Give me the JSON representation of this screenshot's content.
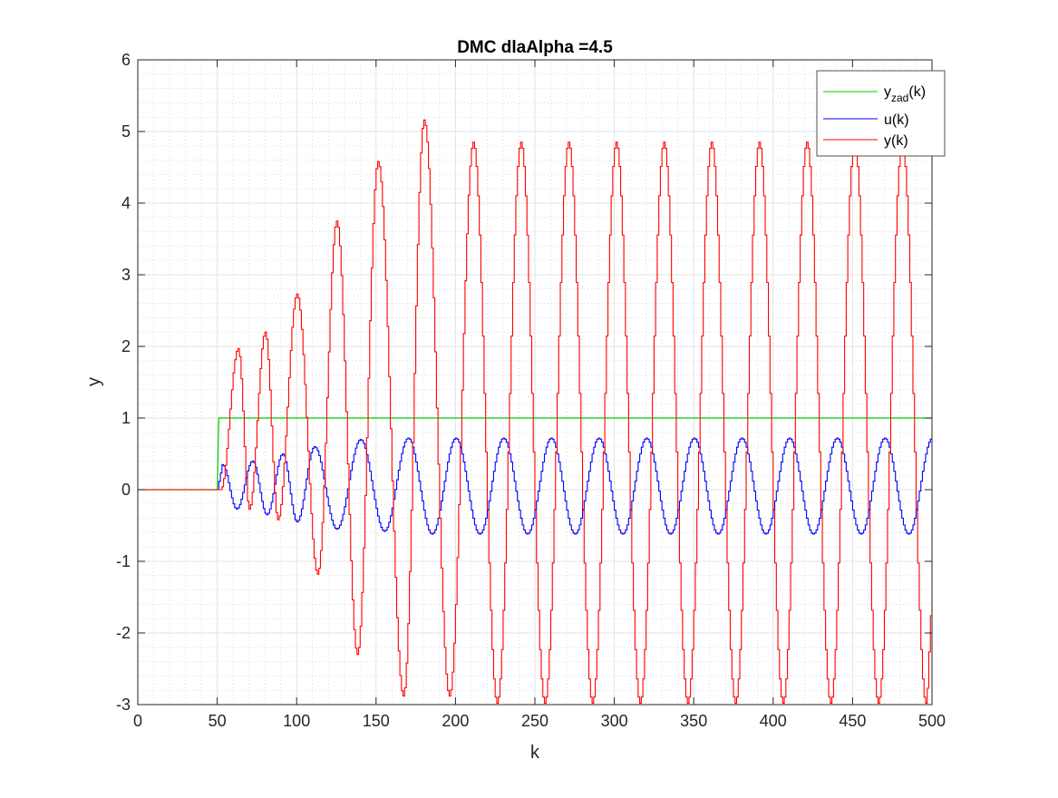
{
  "chart_data": {
    "type": "line",
    "title": "DMC dlaAlpha =4.5",
    "xlabel": "k",
    "ylabel": "y",
    "xlim": [
      0,
      500
    ],
    "ylim": [
      -3,
      6
    ],
    "xticks": [
      0,
      50,
      100,
      150,
      200,
      250,
      300,
      350,
      400,
      450,
      500
    ],
    "yticks": [
      -3,
      -2,
      -1,
      0,
      1,
      2,
      3,
      4,
      5,
      6
    ],
    "grid": true,
    "minor_grid": true,
    "legend_position": "top-right",
    "colors": {
      "yzad": "#00cc00",
      "u": "#0000ff",
      "y": "#ff0000",
      "axis": "#262626",
      "grid": "#e6e6e6"
    },
    "series": [
      {
        "name": "y_zad(k)",
        "legend_main": "y",
        "legend_sub": "zad",
        "legend_suffix": "(k)",
        "color": "#00cc00",
        "step_k": 50,
        "value_before": 0,
        "value_after": 1
      },
      {
        "name": "u(k)",
        "legend_main": "u(k)",
        "color": "#0000ff",
        "start_k": 50,
        "peaks": [
          [
            53,
            0.35
          ],
          [
            62,
            -0.27
          ],
          [
            72,
            0.4
          ],
          [
            81,
            -0.35
          ],
          [
            91,
            0.5
          ],
          [
            100,
            -0.45
          ],
          [
            111,
            0.6
          ],
          [
            125,
            -0.55
          ],
          [
            140,
            0.7
          ],
          [
            155,
            -0.58
          ],
          [
            170,
            0.72
          ],
          [
            185,
            -0.62
          ],
          [
            200,
            0.72
          ],
          [
            215,
            -0.62
          ],
          [
            230,
            0.72
          ],
          [
            245,
            -0.62
          ],
          [
            260,
            0.72
          ],
          [
            275,
            -0.62
          ],
          [
            290,
            0.72
          ],
          [
            305,
            -0.62
          ],
          [
            320,
            0.72
          ],
          [
            335,
            -0.62
          ],
          [
            350,
            0.72
          ],
          [
            365,
            -0.62
          ],
          [
            380,
            0.72
          ],
          [
            395,
            -0.62
          ],
          [
            410,
            0.72
          ],
          [
            425,
            -0.62
          ],
          [
            440,
            0.72
          ],
          [
            455,
            -0.62
          ],
          [
            470,
            0.72
          ],
          [
            485,
            -0.62
          ],
          [
            500,
            0.72
          ]
        ]
      },
      {
        "name": "y(k)",
        "legend_main": "y(k)",
        "color": "#ff0000",
        "start_k": 50,
        "peaks": [
          [
            52,
            0
          ],
          [
            63,
            1.97
          ],
          [
            70,
            -0.27
          ],
          [
            80,
            2.2
          ],
          [
            88,
            -0.42
          ],
          [
            100,
            2.73
          ],
          [
            113,
            -1.18
          ],
          [
            125,
            3.75
          ],
          [
            138,
            -2.3
          ],
          [
            151,
            4.58
          ],
          [
            167,
            -2.88
          ],
          [
            180,
            5.16
          ],
          [
            196,
            -2.88
          ],
          [
            211,
            4.85
          ],
          [
            226,
            -2.98
          ],
          [
            241,
            4.85
          ],
          [
            256,
            -2.98
          ],
          [
            271,
            4.85
          ],
          [
            286,
            -2.98
          ],
          [
            301,
            4.85
          ],
          [
            316,
            -2.98
          ],
          [
            331,
            4.85
          ],
          [
            346,
            -2.98
          ],
          [
            361,
            4.85
          ],
          [
            376,
            -2.98
          ],
          [
            391,
            4.85
          ],
          [
            406,
            -2.98
          ],
          [
            421,
            4.85
          ],
          [
            436,
            -2.98
          ],
          [
            451,
            4.85
          ],
          [
            466,
            -2.98
          ],
          [
            481,
            4.85
          ],
          [
            496,
            -2.98
          ],
          [
            500,
            -1.55
          ]
        ]
      }
    ]
  }
}
